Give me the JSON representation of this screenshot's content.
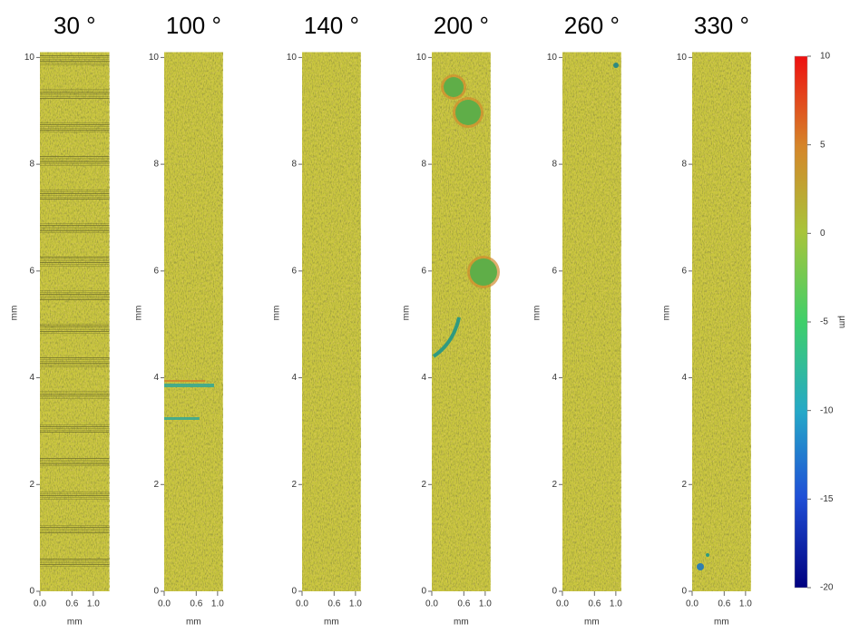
{
  "panels": [
    {
      "title": "30 °",
      "y_label": "mm",
      "x_label": "mm",
      "ylim": [
        0,
        10.1
      ],
      "yticks": [
        0,
        2,
        4,
        6,
        8,
        10
      ],
      "xlim": [
        0,
        1.3
      ],
      "xticks": [
        {
          "value": 0,
          "label": "0.0"
        },
        {
          "value": 0.6,
          "label": "0.6"
        },
        {
          "value": 1,
          "label": "1.0"
        }
      ]
    },
    {
      "title": "100 °",
      "y_label": "mm",
      "x_label": "mm",
      "ylim": [
        0,
        10.1
      ],
      "yticks": [
        0,
        2,
        4,
        6,
        8,
        10
      ],
      "xlim": [
        0,
        1.1
      ],
      "xticks": [
        {
          "value": 0,
          "label": "0.0"
        },
        {
          "value": 0.6,
          "label": "0.6"
        },
        {
          "value": 1,
          "label": "1.0"
        }
      ]
    },
    {
      "title": "140 °",
      "y_label": "mm",
      "x_label": "mm",
      "ylim": [
        0,
        10.1
      ],
      "yticks": [
        0,
        2,
        4,
        6,
        8,
        10
      ],
      "xlim": [
        0,
        1.1
      ],
      "xticks": [
        {
          "value": 0,
          "label": "0.0"
        },
        {
          "value": 0.6,
          "label": "0.6"
        },
        {
          "value": 1,
          "label": "1.0"
        }
      ]
    },
    {
      "title": "200 °",
      "y_label": "mm",
      "x_label": "mm",
      "ylim": [
        0,
        10.1
      ],
      "yticks": [
        0,
        2,
        4,
        6,
        8,
        10
      ],
      "xlim": [
        0,
        1.1
      ],
      "xticks": [
        {
          "value": 0,
          "label": "0.0"
        },
        {
          "value": 0.6,
          "label": "0.6"
        },
        {
          "value": 1,
          "label": "1.0"
        }
      ]
    },
    {
      "title": "260 °",
      "y_label": "mm",
      "x_label": "mm",
      "ylim": [
        0,
        10.1
      ],
      "yticks": [
        0,
        2,
        4,
        6,
        8,
        10
      ],
      "xlim": [
        0,
        1.1
      ],
      "xticks": [
        {
          "value": 0,
          "label": "0.0"
        },
        {
          "value": 0.6,
          "label": "0.6"
        },
        {
          "value": 1,
          "label": "1.0"
        }
      ]
    },
    {
      "title": "330 °",
      "y_label": "mm",
      "x_label": "mm",
      "ylim": [
        0,
        10.1
      ],
      "yticks": [
        0,
        2,
        4,
        6,
        8,
        10
      ],
      "xlim": [
        0,
        1.1
      ],
      "xticks": [
        {
          "value": 0,
          "label": "0.0"
        },
        {
          "value": 0.6,
          "label": "0.6"
        },
        {
          "value": 1,
          "label": "1.0"
        }
      ]
    }
  ],
  "colorbar": {
    "label": "µm",
    "lim": [
      -20,
      10
    ],
    "ticks": [
      -20,
      -15,
      -10,
      -5,
      0,
      5,
      10
    ]
  }
}
